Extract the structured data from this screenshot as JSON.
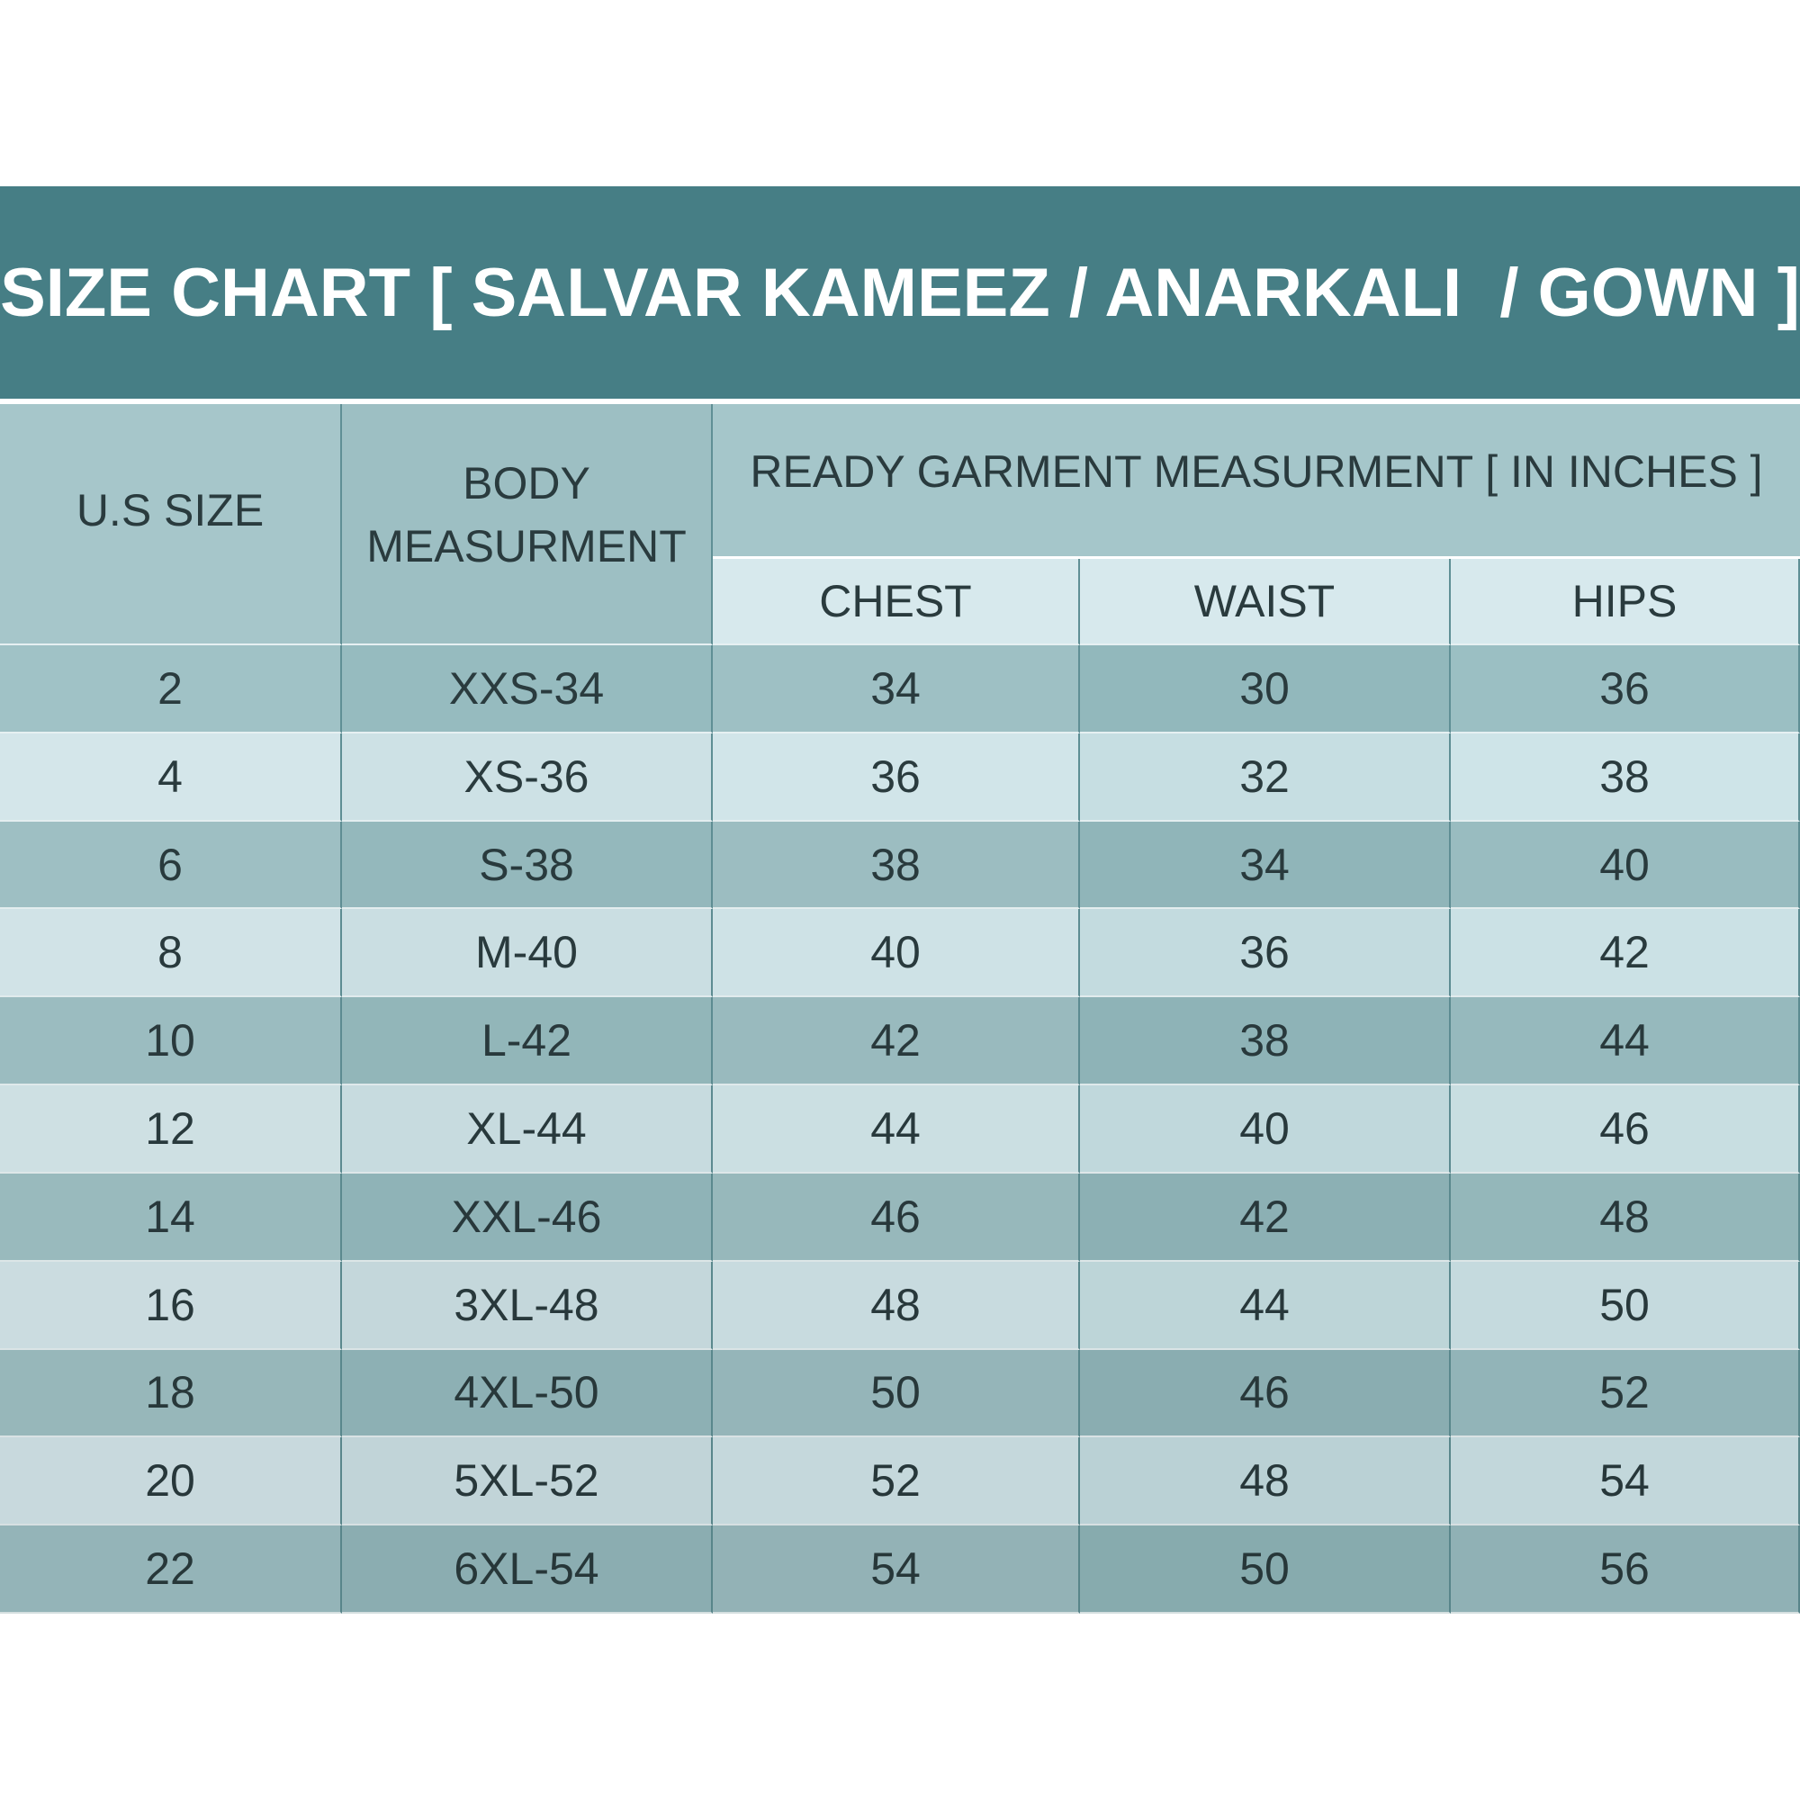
{
  "header": {
    "title": "SIZE CHART [ SALVAR KAMEEZ / ANARKALI  / GOWN ]"
  },
  "table": {
    "columns": {
      "us_size": "U.S SIZE",
      "body": "BODY MEASURMENT",
      "ready": "READY GARMENT MEASURMENT [ IN INCHES ]",
      "sub": [
        "CHEST",
        "WAIST",
        "HIPS"
      ]
    },
    "rows": [
      [
        "2",
        "XXS-34",
        "34",
        "30",
        "36"
      ],
      [
        "4",
        "XS-36",
        "36",
        "32",
        "38"
      ],
      [
        "6",
        "S-38",
        "38",
        "34",
        "40"
      ],
      [
        "8",
        "M-40",
        "40",
        "36",
        "42"
      ],
      [
        "10",
        "L-42",
        "42",
        "38",
        "44"
      ],
      [
        "12",
        "XL-44",
        "44",
        "40",
        "46"
      ],
      [
        "14",
        "XXL-46",
        "46",
        "42",
        "48"
      ],
      [
        "16",
        "3XL-48",
        "48",
        "44",
        "50"
      ],
      [
        "18",
        "4XL-50",
        "50",
        "46",
        "52"
      ],
      [
        "20",
        "5XL-52",
        "52",
        "48",
        "54"
      ],
      [
        "22",
        "6XL-54",
        "54",
        "50",
        "56"
      ]
    ]
  }
}
